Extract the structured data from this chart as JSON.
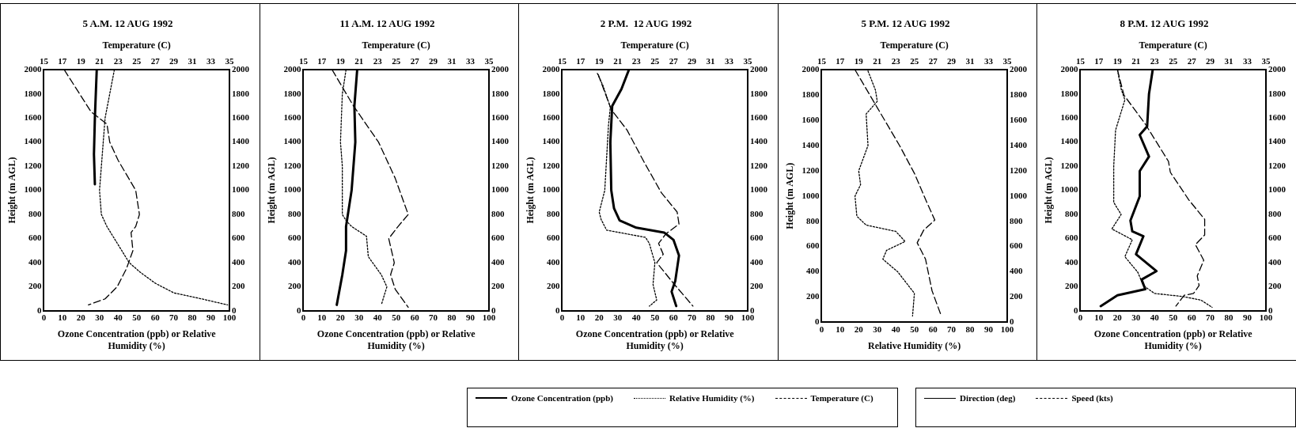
{
  "chart_data": [
    {
      "type": "line",
      "title": "5 A.M. 12 AUG 1992",
      "xlabel": "Ozone Concentration (ppb) or Relative Humidity (%)",
      "x2label": "Temperature (C)",
      "ylabel": "Height (m AGL)",
      "xlim": [
        0,
        100
      ],
      "xticks": [
        0,
        10,
        20,
        30,
        40,
        50,
        60,
        70,
        80,
        90,
        100
      ],
      "x2lim": [
        15,
        35
      ],
      "x2ticks": [
        15,
        17,
        19,
        21,
        23,
        25,
        27,
        29,
        31,
        33,
        35
      ],
      "ylim": [
        0,
        2000
      ],
      "yticks": [
        0,
        200,
        400,
        600,
        800,
        1000,
        1200,
        1400,
        1600,
        1800,
        2000
      ],
      "y2lim": [
        0,
        2000
      ],
      "y2ticks": [
        0,
        200,
        400,
        600,
        800,
        1000,
        1200,
        1400,
        1600,
        1800,
        2000
      ],
      "grid": false,
      "legend": "bottom",
      "series": [
        {
          "name": "Ozone Concentration (ppb)",
          "color": "#000000",
          "line_style": "solid",
          "x": [
            28.5,
            27.5,
            27,
            27.5
          ],
          "values": [
            2000,
            1600,
            1300,
            1050
          ]
        },
        {
          "name": "Relative Humidity (%)",
          "color": "#000000",
          "line_style": "dotted",
          "x": [
            38,
            33,
            32,
            30,
            31,
            34,
            40,
            46,
            52,
            60,
            70,
            85,
            99
          ],
          "values": [
            2000,
            1600,
            1400,
            1000,
            800,
            700,
            550,
            400,
            320,
            230,
            150,
            100,
            50
          ]
        },
        {
          "name": "Temperature (C)",
          "color": "#000000",
          "line_style": "dashed",
          "axis": "x2",
          "x": [
            17.2,
            20.1,
            21.8,
            22.1,
            23.0,
            24.9,
            25.3,
            24.9,
            24.4,
            24.6,
            23.9,
            22.9,
            21.6,
            19.8
          ],
          "values": [
            2000,
            1650,
            1550,
            1400,
            1250,
            1000,
            800,
            700,
            650,
            500,
            350,
            200,
            100,
            50
          ]
        }
      ]
    },
    {
      "type": "line",
      "title": "11 A.M. 12 AUG 1992",
      "xlabel": "Ozone Concentration (ppb) or Relative Humidity (%)",
      "x2label": "Temperature (C)",
      "ylabel": "Height (m AGL)",
      "xlim": [
        0,
        100
      ],
      "xticks": [
        0,
        10,
        20,
        30,
        40,
        50,
        60,
        70,
        80,
        90,
        100
      ],
      "x2lim": [
        15,
        35
      ],
      "x2ticks": [
        15,
        17,
        19,
        21,
        23,
        25,
        27,
        29,
        31,
        33,
        35
      ],
      "ylim": [
        0,
        2000
      ],
      "yticks": [
        0,
        200,
        400,
        600,
        800,
        1000,
        1200,
        1400,
        1600,
        1800,
        2000
      ],
      "y2lim": [
        0,
        2000
      ],
      "y2ticks": [
        0,
        200,
        400,
        600,
        800,
        1000,
        1200,
        1400,
        1600,
        1800,
        2000
      ],
      "grid": false,
      "series": [
        {
          "color": "#000000",
          "line_style": "solid",
          "x": [
            29,
            27.5,
            28,
            26,
            23,
            23,
            21,
            18
          ],
          "values": [
            2000,
            1700,
            1400,
            1000,
            700,
            500,
            300,
            50
          ]
        },
        {
          "color": "#000000",
          "line_style": "dotted",
          "x": [
            23,
            21,
            20,
            21,
            21,
            23,
            26,
            34,
            35,
            42,
            45,
            42
          ],
          "values": [
            2000,
            1800,
            1400,
            1200,
            800,
            750,
            700,
            620,
            450,
            300,
            200,
            50
          ]
        },
        {
          "color": "#000000",
          "line_style": "dashed",
          "axis": "x2",
          "x": [
            18.1,
            20.4,
            23.1,
            24.9,
            26.3,
            25.2,
            24.2,
            24.8,
            24.4,
            24.9,
            26.3
          ],
          "values": [
            2000,
            1700,
            1400,
            1100,
            800,
            700,
            600,
            400,
            300,
            180,
            30
          ]
        }
      ]
    },
    {
      "type": "line",
      "title": "2 P.M.  12 AUG 1992",
      "xlabel": "Ozone Concentration (ppb) or Relative Humidity (%)",
      "x2label": "Temperature (C)",
      "ylabel": "Height (m AGL)",
      "xlim": [
        0,
        100
      ],
      "xticks": [
        0,
        10,
        20,
        30,
        40,
        50,
        60,
        70,
        80,
        90,
        100
      ],
      "x2lim": [
        15,
        35
      ],
      "x2ticks": [
        15,
        17,
        19,
        21,
        23,
        25,
        27,
        29,
        31,
        33,
        35
      ],
      "ylim": [
        0,
        2000
      ],
      "yticks": [
        0,
        200,
        400,
        600,
        800,
        1000,
        1200,
        1400,
        1600,
        1800,
        2000
      ],
      "y2lim": [
        0,
        2000
      ],
      "y2ticks": [
        0,
        200,
        400,
        600,
        800,
        1000,
        1200,
        1400,
        1600,
        1800,
        2000
      ],
      "grid": false,
      "series": [
        {
          "color": "#000000",
          "line_style": "solid",
          "x": [
            36,
            32,
            27,
            26,
            26.5,
            28,
            31,
            40,
            55,
            60,
            63,
            61,
            59,
            61.5
          ],
          "values": [
            2000,
            1840,
            1700,
            1400,
            1000,
            850,
            750,
            690,
            650,
            590,
            460,
            250,
            160,
            40
          ]
        },
        {
          "color": "#000000",
          "line_style": "dotted",
          "x": [
            19,
            22,
            26,
            25,
            23,
            20,
            21,
            24,
            45,
            47,
            50,
            49,
            51,
            47
          ],
          "values": [
            1970,
            1870,
            1690,
            1540,
            1000,
            820,
            760,
            670,
            610,
            560,
            400,
            220,
            90,
            40
          ]
        },
        {
          "color": "#000000",
          "line_style": "dashed",
          "axis": "x2",
          "x": [
            18.9,
            20.3,
            22.0,
            23.8,
            25.7,
            27.4,
            27.6,
            26.2,
            25.4,
            25.9,
            25.2,
            27.1,
            29.1
          ],
          "values": [
            1960,
            1670,
            1500,
            1240,
            980,
            820,
            720,
            640,
            560,
            470,
            400,
            220,
            40
          ]
        }
      ]
    },
    {
      "type": "line",
      "title": "5 P.M. 12 AUG 1992",
      "xlabel": "Relative Humidity (%)",
      "x2label": "Temperature (C)",
      "ylabel": "Height (m AGL)",
      "xlim": [
        0,
        100
      ],
      "xticks": [
        0,
        10,
        20,
        30,
        40,
        50,
        60,
        70,
        80,
        90,
        100
      ],
      "x2lim": [
        15,
        35
      ],
      "x2ticks": [
        15,
        17,
        19,
        21,
        23,
        25,
        27,
        29,
        31,
        33,
        35
      ],
      "ylim": [
        0,
        2000
      ],
      "yticks": [
        0,
        200,
        400,
        600,
        800,
        1000,
        1200,
        1400,
        1600,
        1800,
        2000
      ],
      "y2lim": [
        0,
        2000
      ],
      "y2ticks": [
        0,
        200,
        400,
        600,
        800,
        1000,
        1200,
        1400,
        1600,
        1800,
        2000
      ],
      "grid": false,
      "series": [
        {
          "color": "#000000",
          "line_style": "dotted",
          "x": [
            25,
            29,
            30,
            24,
            25,
            20,
            21,
            18,
            19,
            24,
            40,
            45,
            35,
            33,
            41,
            50,
            49
          ],
          "values": [
            1990,
            1840,
            1750,
            1650,
            1400,
            1200,
            1090,
            1000,
            840,
            770,
            720,
            640,
            570,
            500,
            400,
            230,
            50
          ]
        },
        {
          "color": "#000000",
          "line_style": "dashed",
          "axis": "x2",
          "x": [
            18.6,
            21.0,
            23.4,
            25.0,
            26.4,
            27.2,
            26.0,
            25.3,
            26.2,
            26.9,
            27.9
          ],
          "values": [
            2000,
            1700,
            1400,
            1180,
            940,
            810,
            730,
            630,
            500,
            250,
            50
          ]
        }
      ]
    },
    {
      "type": "line",
      "title": "8 P.M. 12 AUG 1992",
      "xlabel": "Ozone Concentration (ppb) or Relative Humidity (%)",
      "x2label": "Temperature (C)",
      "ylabel": "Height (m AGL)",
      "xlim": [
        0,
        100
      ],
      "xticks": [
        0,
        10,
        20,
        30,
        40,
        50,
        60,
        70,
        80,
        90,
        100
      ],
      "x2lim": [
        15,
        35
      ],
      "x2ticks": [
        15,
        17,
        19,
        21,
        23,
        25,
        27,
        29,
        31,
        33,
        35
      ],
      "ylim": [
        0,
        2000
      ],
      "yticks": [
        0,
        200,
        400,
        600,
        800,
        1000,
        1200,
        1400,
        1600,
        1800,
        2000
      ],
      "y2lim": [
        0,
        2000
      ],
      "y2ticks": [
        0,
        200,
        400,
        600,
        800,
        1000,
        1200,
        1400,
        1600,
        1800,
        2000
      ],
      "grid": false,
      "series": [
        {
          "color": "#000000",
          "line_style": "solid",
          "x": [
            39,
            37,
            36,
            32,
            37,
            32,
            32,
            27,
            28,
            34,
            30,
            41,
            33,
            35,
            20,
            11
          ],
          "values": [
            2000,
            1800,
            1530,
            1460,
            1280,
            1160,
            950,
            750,
            660,
            620,
            470,
            330,
            260,
            180,
            130,
            40
          ]
        },
        {
          "color": "#000000",
          "line_style": "dotted",
          "x": [
            20,
            22,
            24,
            19,
            18,
            18,
            22,
            17,
            28,
            24,
            31,
            34,
            40,
            55,
            65,
            71
          ],
          "values": [
            2000,
            1840,
            1750,
            1500,
            1200,
            900,
            800,
            680,
            590,
            450,
            320,
            210,
            145,
            120,
            90,
            30
          ]
        },
        {
          "color": "#000000",
          "line_style": "dashed",
          "axis": "x2",
          "x": [
            19.0,
            19.7,
            22.0,
            24.5,
            24.7,
            26.7,
            28.4,
            28.4,
            27.4,
            28.3,
            27.6,
            27.8,
            27.2,
            26.2,
            25.3
          ],
          "values": [
            2000,
            1790,
            1550,
            1240,
            1150,
            920,
            760,
            630,
            550,
            420,
            290,
            210,
            145,
            130,
            40
          ]
        }
      ]
    },
    {
      "type": "other",
      "annotations": [
        "Direction (deg)",
        "Speed (kts)"
      ]
    }
  ]
}
